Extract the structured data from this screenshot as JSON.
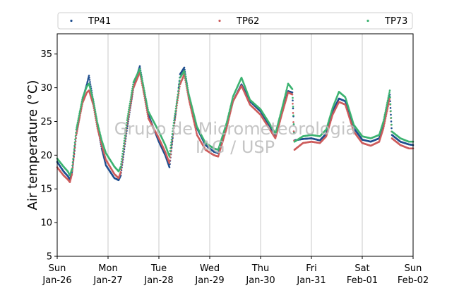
{
  "watermark": {
    "line1": "Grupo de Micrometeorologia",
    "line2": "IAG / USP"
  },
  "chart_data": {
    "type": "scatter",
    "ylabel": "Air temperature (°C)",
    "xlabel": "",
    "ylim": [
      5,
      38
    ],
    "yticks": [
      5,
      10,
      15,
      20,
      25,
      30,
      35
    ],
    "xlim": [
      "2020-01-26",
      "2020-02-02"
    ],
    "x_ticks": [
      {
        "date": "2020-01-26",
        "day": "Sun",
        "date_label": "Jan-26"
      },
      {
        "date": "2020-01-27",
        "day": "Mon",
        "date_label": "Jan-27"
      },
      {
        "date": "2020-01-28",
        "day": "Tue",
        "date_label": "Jan-28"
      },
      {
        "date": "2020-01-29",
        "day": "Wed",
        "date_label": "Jan-29"
      },
      {
        "date": "2020-01-30",
        "day": "Thu",
        "date_label": "Jan-30"
      },
      {
        "date": "2020-01-31",
        "day": "Fri",
        "date_label": "Jan-31"
      },
      {
        "date": "2020-02-01",
        "day": "Sat",
        "date_label": "Feb-01"
      },
      {
        "date": "2020-02-02",
        "day": "Sun",
        "date_label": "Feb-02"
      }
    ],
    "grid": "vertical at day boundaries",
    "legend": {
      "placement": "top, above plot, three columns"
    },
    "series": [
      {
        "name": "TP41",
        "color": "#1f4e8f",
        "points": [
          [
            "2020-01-26 00:00",
            19.0
          ],
          [
            "2020-01-26 03:00",
            17.6
          ],
          [
            "2020-01-26 05:00",
            16.9
          ],
          [
            "2020-01-26 06:00",
            16.4
          ],
          [
            "2020-01-26 07:00",
            17.5
          ],
          [
            "2020-01-26 09:00",
            23.0
          ],
          [
            "2020-01-26 12:00",
            28.3
          ],
          [
            "2020-01-26 14:00",
            30.5
          ],
          [
            "2020-01-26 15:00",
            31.8
          ],
          [
            "2020-01-26 17:00",
            28.0
          ],
          [
            "2020-01-26 19:00",
            24.5
          ],
          [
            "2020-01-26 21:00",
            21.0
          ],
          [
            "2020-01-26 23:00",
            18.5
          ],
          [
            "2020-01-27 03:00",
            16.6
          ],
          [
            "2020-01-27 05:00",
            16.3
          ],
          [
            "2020-01-27 06:00",
            17.0
          ],
          [
            "2020-01-27 09:00",
            24.0
          ],
          [
            "2020-01-27 12:00",
            30.0
          ],
          [
            "2020-01-27 15:00",
            33.2
          ],
          [
            "2020-01-27 17:00",
            29.5
          ],
          [
            "2020-01-27 19:00",
            26.0
          ],
          [
            "2020-01-28 00:00",
            22.0
          ],
          [
            "2020-01-28 03:00",
            20.0
          ],
          [
            "2020-01-28 05:00",
            18.2
          ],
          [
            "2020-01-28 07:00",
            24.0
          ],
          [
            "2020-01-28 09:00",
            29.0
          ],
          [
            "2020-01-28 10:00",
            32.0
          ],
          [
            "2020-01-28 12:00",
            33.0
          ],
          [
            "2020-01-28 14:00",
            29.0
          ],
          [
            "2020-01-28 18:00",
            24.0
          ],
          [
            "2020-01-28 22:00",
            21.5
          ],
          [
            "2020-01-29 02:00",
            20.5
          ],
          [
            "2020-01-29 04:00",
            20.3
          ],
          [
            "2020-01-29 08:00",
            24.5
          ],
          [
            "2020-01-29 11:00",
            28.0
          ],
          [
            "2020-01-29 15:00",
            30.5
          ],
          [
            "2020-01-29 19:00",
            28.0
          ],
          [
            "2020-01-30 00:00",
            26.5
          ],
          [
            "2020-01-30 04:00",
            24.5
          ],
          [
            "2020-01-30 07:00",
            22.8
          ],
          [
            "2020-01-30 10:00",
            26.5
          ],
          [
            "2020-01-30 13:00",
            29.5
          ],
          [
            "2020-01-30 15:00",
            29.3
          ],
          [
            "2020-01-30 16:00",
            22.2
          ],
          [
            "2020-01-30 20:00",
            22.4
          ],
          [
            "2020-01-31 00:00",
            22.5
          ],
          [
            "2020-01-31 04:00",
            22.2
          ],
          [
            "2020-01-31 07:00",
            23.2
          ],
          [
            "2020-01-31 10:00",
            26.5
          ],
          [
            "2020-01-31 13:00",
            28.4
          ],
          [
            "2020-01-31 16:00",
            28.0
          ],
          [
            "2020-01-31 20:00",
            24.0
          ],
          [
            "2020-02-01 00:00",
            22.3
          ],
          [
            "2020-02-01 04:00",
            22.0
          ],
          [
            "2020-02-01 08:00",
            22.5
          ],
          [
            "2020-02-01 10:00",
            24.5
          ],
          [
            "2020-02-01 13:00",
            29.0
          ],
          [
            "2020-02-01 14:00",
            23.0
          ],
          [
            "2020-02-01 18:00",
            22.0
          ],
          [
            "2020-02-01 22:00",
            21.6
          ],
          [
            "2020-02-02 00:00",
            21.5
          ]
        ]
      },
      {
        "name": "TP62",
        "color": "#cd5c5c",
        "points": [
          [
            "2020-01-26 00:00",
            18.2
          ],
          [
            "2020-01-26 03:00",
            17.0
          ],
          [
            "2020-01-26 05:00",
            16.4
          ],
          [
            "2020-01-26 06:00",
            16.0
          ],
          [
            "2020-01-26 07:00",
            17.2
          ],
          [
            "2020-01-26 09:00",
            23.0
          ],
          [
            "2020-01-26 12:00",
            27.8
          ],
          [
            "2020-01-26 14:00",
            29.3
          ],
          [
            "2020-01-26 15:00",
            29.6
          ],
          [
            "2020-01-26 17:00",
            27.5
          ],
          [
            "2020-01-26 19:00",
            24.0
          ],
          [
            "2020-01-26 21:00",
            21.5
          ],
          [
            "2020-01-26 23:00",
            19.3
          ],
          [
            "2020-01-27 03:00",
            17.2
          ],
          [
            "2020-01-27 05:00",
            16.6
          ],
          [
            "2020-01-27 06:00",
            17.5
          ],
          [
            "2020-01-27 09:00",
            24.5
          ],
          [
            "2020-01-27 12:00",
            30.0
          ],
          [
            "2020-01-27 15:00",
            32.3
          ],
          [
            "2020-01-27 17:00",
            29.0
          ],
          [
            "2020-01-27 19:00",
            25.5
          ],
          [
            "2020-01-28 00:00",
            22.5
          ],
          [
            "2020-01-28 03:00",
            20.5
          ],
          [
            "2020-01-28 05:00",
            18.8
          ],
          [
            "2020-01-28 07:00",
            24.0
          ],
          [
            "2020-01-28 09:00",
            28.5
          ],
          [
            "2020-01-28 10:00",
            30.5
          ],
          [
            "2020-01-28 12:00",
            32.0
          ],
          [
            "2020-01-28 14:00",
            28.5
          ],
          [
            "2020-01-28 18:00",
            23.0
          ],
          [
            "2020-01-28 22:00",
            20.8
          ],
          [
            "2020-01-29 02:00",
            20.0
          ],
          [
            "2020-01-29 04:00",
            19.8
          ],
          [
            "2020-01-29 08:00",
            24.0
          ],
          [
            "2020-01-29 11:00",
            28.0
          ],
          [
            "2020-01-29 15:00",
            30.3
          ],
          [
            "2020-01-29 19:00",
            27.5
          ],
          [
            "2020-01-30 00:00",
            26.0
          ],
          [
            "2020-01-30 04:00",
            24.0
          ],
          [
            "2020-01-30 07:00",
            22.5
          ],
          [
            "2020-01-30 10:00",
            26.0
          ],
          [
            "2020-01-30 13:00",
            29.3
          ],
          [
            "2020-01-30 15:00",
            29.0
          ],
          [
            "2020-01-30 16:00",
            20.8
          ],
          [
            "2020-01-30 20:00",
            21.8
          ],
          [
            "2020-01-31 00:00",
            22.0
          ],
          [
            "2020-01-31 04:00",
            21.8
          ],
          [
            "2020-01-31 07:00",
            22.8
          ],
          [
            "2020-01-31 10:00",
            26.0
          ],
          [
            "2020-01-31 13:00",
            27.9
          ],
          [
            "2020-01-31 16:00",
            27.5
          ],
          [
            "2020-01-31 20:00",
            23.5
          ],
          [
            "2020-02-01 00:00",
            21.8
          ],
          [
            "2020-02-01 04:00",
            21.4
          ],
          [
            "2020-02-01 08:00",
            22.0
          ],
          [
            "2020-02-01 10:00",
            24.0
          ],
          [
            "2020-02-01 13:00",
            28.5
          ],
          [
            "2020-02-01 14:00",
            22.5
          ],
          [
            "2020-02-01 18:00",
            21.5
          ],
          [
            "2020-02-01 22:00",
            21.0
          ],
          [
            "2020-02-02 00:00",
            21.0
          ]
        ]
      },
      {
        "name": "TP73",
        "color": "#3cb371",
        "points": [
          [
            "2020-01-26 00:00",
            19.5
          ],
          [
            "2020-01-26 03:00",
            18.3
          ],
          [
            "2020-01-26 05:00",
            17.6
          ],
          [
            "2020-01-26 06:00",
            17.0
          ],
          [
            "2020-01-26 07:00",
            18.0
          ],
          [
            "2020-01-26 09:00",
            23.8
          ],
          [
            "2020-01-26 12:00",
            28.5
          ],
          [
            "2020-01-26 14:00",
            30.2
          ],
          [
            "2020-01-26 15:00",
            30.6
          ],
          [
            "2020-01-26 17:00",
            28.2
          ],
          [
            "2020-01-26 19:00",
            24.8
          ],
          [
            "2020-01-26 21:00",
            22.2
          ],
          [
            "2020-01-26 23:00",
            20.3
          ],
          [
            "2020-01-27 03:00",
            18.3
          ],
          [
            "2020-01-27 05:00",
            17.6
          ],
          [
            "2020-01-27 06:00",
            18.3
          ],
          [
            "2020-01-27 09:00",
            25.2
          ],
          [
            "2020-01-27 12:00",
            30.8
          ],
          [
            "2020-01-27 15:00",
            32.8
          ],
          [
            "2020-01-27 17:00",
            29.8
          ],
          [
            "2020-01-27 19:00",
            26.5
          ],
          [
            "2020-01-28 00:00",
            23.5
          ],
          [
            "2020-01-28 03:00",
            21.5
          ],
          [
            "2020-01-28 05:00",
            19.8
          ],
          [
            "2020-01-28 07:00",
            24.8
          ],
          [
            "2020-01-28 09:00",
            29.0
          ],
          [
            "2020-01-28 10:00",
            31.5
          ],
          [
            "2020-01-28 12:00",
            32.5
          ],
          [
            "2020-01-28 14:00",
            29.2
          ],
          [
            "2020-01-28 18:00",
            24.2
          ],
          [
            "2020-01-28 22:00",
            21.8
          ],
          [
            "2020-01-29 02:00",
            21.0
          ],
          [
            "2020-01-29 04:00",
            20.8
          ],
          [
            "2020-01-29 08:00",
            24.8
          ],
          [
            "2020-01-29 11:00",
            28.7
          ],
          [
            "2020-01-29 15:00",
            31.5
          ],
          [
            "2020-01-29 19:00",
            28.2
          ],
          [
            "2020-01-30 00:00",
            26.8
          ],
          [
            "2020-01-30 04:00",
            24.8
          ],
          [
            "2020-01-30 07:00",
            23.2
          ],
          [
            "2020-01-30 10:00",
            26.8
          ],
          [
            "2020-01-30 13:00",
            30.6
          ],
          [
            "2020-01-30 15:00",
            29.8
          ],
          [
            "2020-01-30 16:00",
            22.0
          ],
          [
            "2020-01-30 20:00",
            22.8
          ],
          [
            "2020-01-31 00:00",
            23.0
          ],
          [
            "2020-01-31 04:00",
            22.8
          ],
          [
            "2020-01-31 07:00",
            23.8
          ],
          [
            "2020-01-31 10:00",
            27.0
          ],
          [
            "2020-01-31 13:00",
            29.4
          ],
          [
            "2020-01-31 16:00",
            28.6
          ],
          [
            "2020-01-31 20:00",
            24.5
          ],
          [
            "2020-02-01 00:00",
            22.8
          ],
          [
            "2020-02-01 04:00",
            22.5
          ],
          [
            "2020-02-01 08:00",
            23.0
          ],
          [
            "2020-02-01 10:00",
            25.0
          ],
          [
            "2020-02-01 13:00",
            29.6
          ],
          [
            "2020-02-01 14:00",
            23.5
          ],
          [
            "2020-02-01 18:00",
            22.5
          ],
          [
            "2020-02-01 22:00",
            22.0
          ],
          [
            "2020-02-02 00:00",
            22.0
          ]
        ]
      }
    ]
  }
}
